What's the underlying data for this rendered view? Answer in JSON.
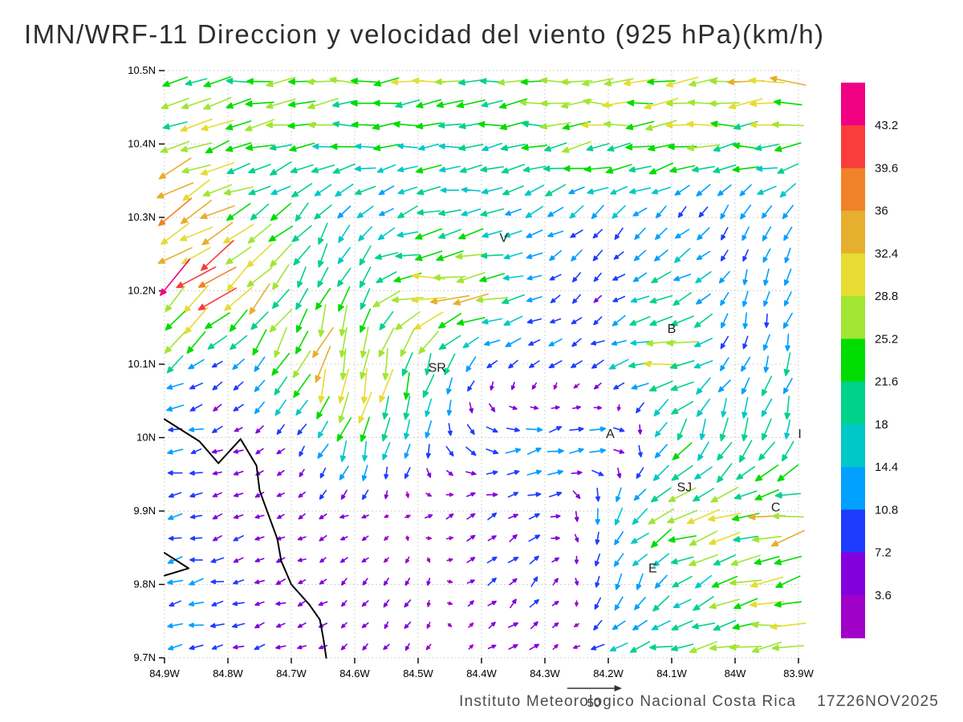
{
  "title": "IMN/WRF-11 Direccion y velocidad del viento (925 hPa)(km/h)",
  "footer": {
    "institute": "Instituto Meteorologico Nacional Costa Rica",
    "datetime": "17Z26NOV2025"
  },
  "chart_data": {
    "type": "vector_field",
    "units": "km/h",
    "level": "925 hPa",
    "title": "IMN/WRF-11 Direccion y velocidad del viento (925 hPa)(km/h)",
    "axes": {
      "lon_min": -84.9,
      "lon_max": -83.9,
      "lat_min": 9.7,
      "lat_max": 10.5,
      "grid": "dotted",
      "x_ticks": [
        {
          "label": "84.9W",
          "lon": -84.9
        },
        {
          "label": "84.8W",
          "lon": -84.8
        },
        {
          "label": "84.7W",
          "lon": -84.7
        },
        {
          "label": "84.6W",
          "lon": -84.6
        },
        {
          "label": "84.5W",
          "lon": -84.5
        },
        {
          "label": "84.4W",
          "lon": -84.4
        },
        {
          "label": "84.3W",
          "lon": -84.3
        },
        {
          "label": "84.2W",
          "lon": -84.2
        },
        {
          "label": "84.1W",
          "lon": -84.1
        },
        {
          "label": "84W",
          "lon": -84.0
        },
        {
          "label": "83.9W",
          "lon": -83.9
        }
      ],
      "y_ticks": [
        {
          "label": "10.5N",
          "lat": 10.5
        },
        {
          "label": "10.4N",
          "lat": 10.4
        },
        {
          "label": "10.3N",
          "lat": 10.3
        },
        {
          "label": "10.2N",
          "lat": 10.2
        },
        {
          "label": "10.1N",
          "lat": 10.1
        },
        {
          "label": "10N",
          "lat": 10.0
        },
        {
          "label": "9.9N",
          "lat": 9.9
        },
        {
          "label": "9.8N",
          "lat": 9.8
        },
        {
          "label": "9.7N",
          "lat": 9.7
        }
      ]
    },
    "colorbar": {
      "position": "right",
      "levels": [
        3.6,
        7.2,
        10.8,
        14.4,
        18,
        21.6,
        25.2,
        28.8,
        32.4,
        36,
        39.6,
        43.2
      ],
      "labels_top_to_bottom": [
        "43.2",
        "39.6",
        "36",
        "32.4",
        "28.8",
        "25.2",
        "21.6",
        "18",
        "14.4",
        "10.8",
        "7.2",
        "3.6"
      ],
      "colors_low_to_high": [
        "#A000C8",
        "#8200DC",
        "#1E3CFF",
        "#00A0FF",
        "#00C8C8",
        "#00D28C",
        "#00DC00",
        "#A0E632",
        "#E6DC32",
        "#E6AF2D",
        "#F08228",
        "#FA3C3C",
        "#F00082"
      ]
    },
    "ref_vector": {
      "label": "50",
      "value": 50
    },
    "stations": [
      {
        "label": "V",
        "lon": -84.365,
        "lat": 10.272
      },
      {
        "label": "B",
        "lon": -84.1,
        "lat": 10.148
      },
      {
        "label": "SR",
        "lon": -84.47,
        "lat": 10.095
      },
      {
        "label": "A",
        "lon": -84.197,
        "lat": 10.005
      },
      {
        "label": "SJ",
        "lon": -84.08,
        "lat": 9.932
      },
      {
        "label": "C",
        "lon": -83.936,
        "lat": 9.905
      },
      {
        "label": "E",
        "lon": -84.13,
        "lat": 9.822
      },
      {
        "label": "I",
        "lon": -83.898,
        "lat": 10.005
      }
    ],
    "coastlines": [
      [
        [
          -84.9,
          10.025
        ],
        [
          -84.845,
          9.995
        ],
        [
          -84.815,
          9.965
        ],
        [
          -84.78,
          9.998
        ],
        [
          -84.755,
          9.962
        ],
        [
          -84.75,
          9.928
        ],
        [
          -84.737,
          9.897
        ],
        [
          -84.722,
          9.862
        ],
        [
          -84.716,
          9.832
        ],
        [
          -84.7,
          9.8
        ],
        [
          -84.672,
          9.773
        ],
        [
          -84.655,
          9.752
        ],
        [
          -84.649,
          9.724
        ],
        [
          -84.645,
          9.7
        ]
      ],
      [
        [
          -84.9,
          9.843
        ],
        [
          -84.862,
          9.822
        ],
        [
          -84.9,
          9.812
        ]
      ]
    ],
    "vectors": {
      "comment": "Coarse estimated wind grid (u eastward, v northward, km/h); rows run lat 10.5N down to 9.7N, cols lon 84.9W to 83.9W",
      "lons": [
        -84.9,
        -84.8,
        -84.7,
        -84.6,
        -84.5,
        -84.4,
        -84.3,
        -84.2,
        -84.1,
        -84.0,
        -83.9
      ],
      "lats": [
        10.5,
        10.4,
        10.3,
        10.2,
        10.1,
        10.0,
        9.9,
        9.8,
        9.7
      ],
      "u": [
        [
          -16,
          -24,
          -26,
          -26,
          -25,
          -24,
          -25,
          -26,
          -28,
          -29,
          -28
        ],
        [
          -26,
          -26,
          -22,
          -20,
          -20,
          -20,
          -22,
          -24,
          -25,
          -25,
          -24
        ],
        [
          -32,
          -26,
          -12,
          -8,
          -16,
          -17,
          -12,
          -9,
          -7,
          -5,
          -4
        ],
        [
          -28,
          -30,
          -14,
          -5,
          -38,
          -28,
          -8,
          -4,
          -20,
          -3,
          -3
        ],
        [
          -16,
          -5,
          -11,
          -9,
          -7,
          -8,
          -7,
          -12,
          -29,
          -4,
          -5
        ],
        [
          -12,
          -6,
          -4,
          -7,
          -4,
          10,
          14,
          14,
          -8,
          -5,
          -5
        ],
        [
          -10,
          -5,
          -4,
          -4,
          3,
          6,
          8,
          -4,
          -26,
          -26,
          -30
        ],
        [
          -11,
          -9,
          -5,
          -3,
          -2,
          5,
          4,
          -3,
          -12,
          -24,
          -26
        ],
        [
          -10,
          -8,
          -6,
          -3,
          -3,
          3,
          7,
          -14,
          -20,
          -25,
          -27
        ]
      ],
      "v": [
        [
          -6,
          -2,
          -1,
          -1,
          -1,
          -1,
          -1,
          -1,
          -1,
          -1,
          -1
        ],
        [
          -14,
          -6,
          -3,
          -2,
          -2,
          -2,
          -2,
          -2,
          -2,
          -2,
          -2
        ],
        [
          -20,
          -16,
          -12,
          -12,
          -5,
          -3,
          -7,
          -8,
          -8,
          -10,
          -13
        ],
        [
          -22,
          -26,
          -20,
          -16,
          -3,
          -5,
          -5,
          -4,
          -7,
          -10,
          -11
        ],
        [
          -11,
          -5,
          -26,
          -32,
          -24,
          -7,
          -5,
          -5,
          -5,
          -9,
          -17
        ],
        [
          -2,
          -2,
          -3,
          -24,
          -14,
          -4,
          4,
          2,
          -16,
          -20,
          -17
        ],
        [
          -2,
          -2,
          -2,
          -2,
          2,
          3,
          3,
          -14,
          -8,
          -6,
          -5
        ],
        [
          -2,
          -2,
          -2,
          -3,
          -5,
          4,
          6,
          -12,
          -12,
          -6,
          -6
        ],
        [
          -2,
          -2,
          -2,
          -3,
          -3,
          2,
          3,
          -3,
          -4,
          -4,
          -4
        ]
      ]
    }
  }
}
